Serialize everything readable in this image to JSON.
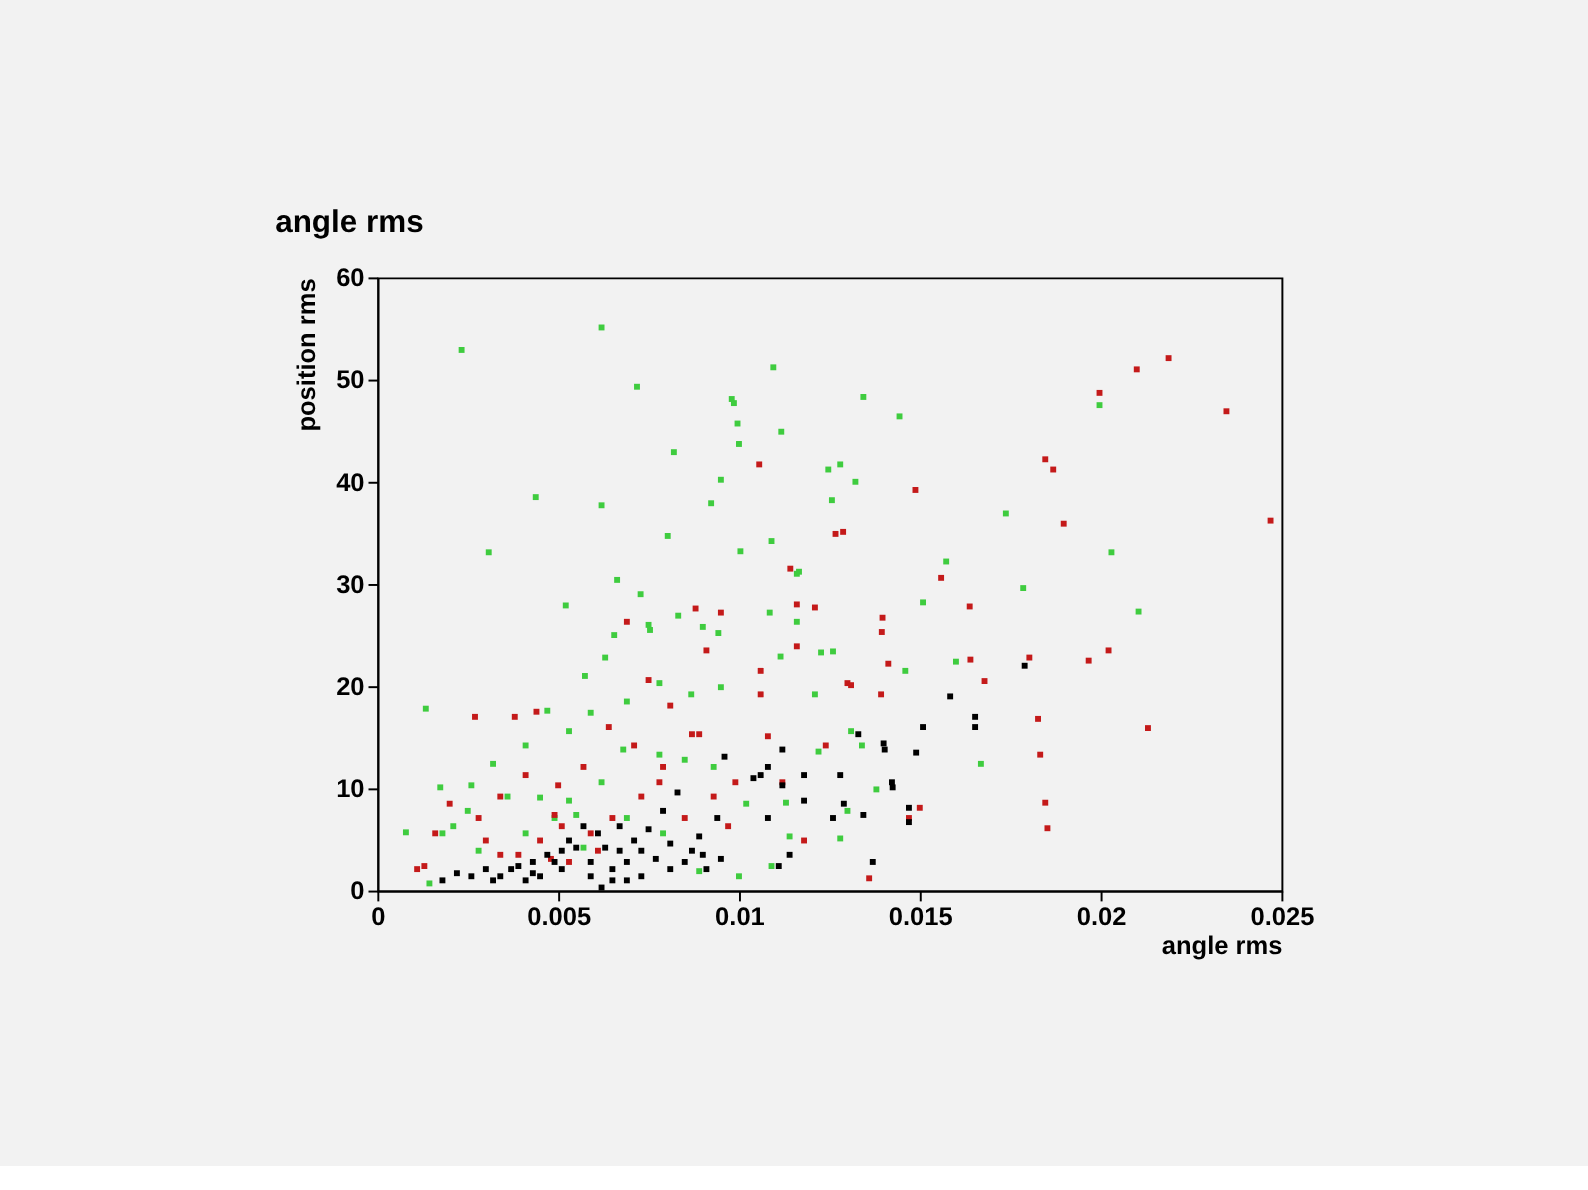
{
  "chart_data": {
    "type": "scatter",
    "title": "angle rms",
    "xlabel": "angle rms",
    "ylabel": "position rms",
    "xlim": [
      0,
      0.025
    ],
    "xticks": [
      0,
      0.005,
      0.01,
      0.015,
      0.02,
      0.025
    ],
    "ylim": [
      0,
      60
    ],
    "yticks": [
      0,
      10,
      20,
      30,
      40,
      50,
      60
    ],
    "grid": false,
    "legend": false,
    "marker": "square",
    "series": [
      {
        "color": "#3fcc3f",
        "x": [
          0.00233,
          0.0062,
          0.00718,
          0.0098,
          0.00986,
          0.00996,
          0.01,
          0.01095,
          0.01117,
          0.0082,
          0.00438,
          0.0062,
          0.00308,
          0.0095,
          0.00923,
          0.01344,
          0.01444,
          0.01247,
          0.0128,
          0.01257,
          0.01322,
          0.0109,
          0.00803,
          0.01004,
          0.01166,
          0.0116,
          0.01738,
          0.0203,
          0.01997,
          0.01573,
          0.01786,
          0.02105,
          0.01669,
          0.016,
          0.01509,
          0.00663,
          0.00728,
          0.00521,
          0.00134,
          0.00079,
          0.00174,
          0.00144,
          0.00655,
          0.0075,
          0.00832,
          0.00754,
          0.0063,
          0.00574,
          0.009,
          0.00943,
          0.01085,
          0.01115,
          0.0116,
          0.01227,
          0.0126,
          0.0146,
          0.0121,
          0.0131,
          0.0095,
          0.00868,
          0.0078,
          0.0069,
          0.0047,
          0.0041,
          0.0059,
          0.0053,
          0.0032,
          0.0026,
          0.0025,
          0.0018,
          0.0036,
          0.0045,
          0.0053,
          0.0062,
          0.0068,
          0.0078,
          0.0085,
          0.0093,
          0.0102,
          0.0113,
          0.0114,
          0.0128,
          0.0122,
          0.0134,
          0.0138,
          0.013,
          0.0109,
          0.0089,
          0.01,
          0.0028,
          0.0021,
          0.0041,
          0.0057,
          0.0069,
          0.0079,
          0.0049,
          0.0055
        ],
        "values": [
          52.9,
          55.1,
          49.3,
          48.1,
          47.7,
          45.7,
          43.7,
          51.2,
          44.9,
          42.9,
          38.5,
          37.7,
          33.1,
          40.2,
          37.9,
          48.3,
          46.4,
          41.2,
          41.7,
          38.2,
          40.0,
          34.2,
          34.7,
          33.2,
          31.2,
          31.0,
          36.9,
          33.1,
          47.5,
          32.2,
          29.6,
          27.3,
          12.4,
          22.4,
          28.2,
          30.4,
          29.0,
          27.9,
          17.8,
          5.7,
          10.1,
          0.7,
          25.0,
          26.0,
          26.9,
          25.5,
          22.8,
          21.0,
          25.8,
          25.2,
          27.2,
          22.9,
          26.3,
          23.3,
          23.4,
          21.5,
          19.2,
          15.6,
          19.9,
          19.2,
          20.3,
          18.5,
          17.6,
          14.2,
          17.4,
          15.6,
          12.4,
          10.3,
          7.8,
          5.6,
          9.2,
          9.1,
          8.8,
          10.6,
          13.8,
          13.3,
          12.8,
          12.1,
          8.5,
          8.6,
          5.3,
          5.1,
          13.6,
          14.2,
          9.9,
          7.8,
          2.4,
          1.9,
          1.4,
          3.9,
          6.3,
          5.6,
          4.2,
          7.1,
          5.6,
          7.1,
          7.4
        ]
      },
      {
        "color": "#c41a1a",
        "x": [
          0.02188,
          0.021,
          0.01997,
          0.02348,
          0.01847,
          0.01869,
          0.01898,
          0.0247,
          0.01488,
          0.01056,
          0.01267,
          0.01288,
          0.01142,
          0.01559,
          0.01638,
          0.01967,
          0.02022,
          0.01803,
          0.0164,
          0.01679,
          0.01827,
          0.02131,
          0.01833,
          0.01847,
          0.01853,
          0.01397,
          0.01395,
          0.01413,
          0.01393,
          0.013,
          0.0131,
          0.0116,
          0.0121,
          0.0088,
          0.0095,
          0.0106,
          0.0106,
          0.0108,
          0.0116,
          0.0027,
          0.0038,
          0.0044,
          0.0069,
          0.0075,
          0.0081,
          0.0091,
          0.0089,
          0.0064,
          0.0071,
          0.0079,
          0.0057,
          0.005,
          0.0041,
          0.0034,
          0.0028,
          0.002,
          0.0016,
          0.0011,
          0.0013,
          0.003,
          0.0039,
          0.0045,
          0.0051,
          0.0059,
          0.0065,
          0.0073,
          0.0085,
          0.0093,
          0.0099,
          0.0112,
          0.0118,
          0.0124,
          0.0147,
          0.015,
          0.0136,
          0.0053,
          0.0061,
          0.0034,
          0.0048,
          0.0097,
          0.0078,
          0.0087,
          0.0049
        ],
        "values": [
          52.1,
          51.0,
          48.7,
          46.9,
          42.2,
          41.2,
          35.9,
          36.2,
          39.2,
          41.7,
          34.9,
          35.1,
          31.5,
          30.6,
          27.8,
          22.5,
          23.5,
          22.8,
          22.6,
          20.5,
          16.8,
          15.9,
          13.3,
          8.6,
          6.1,
          26.7,
          25.3,
          22.2,
          19.2,
          20.3,
          20.1,
          28.0,
          27.7,
          27.6,
          27.2,
          21.5,
          19.2,
          15.1,
          23.9,
          17.0,
          17.0,
          17.5,
          26.3,
          20.6,
          18.1,
          23.5,
          15.3,
          16.0,
          14.2,
          12.1,
          12.1,
          10.3,
          11.3,
          9.2,
          7.1,
          8.5,
          5.6,
          2.1,
          2.4,
          4.9,
          3.5,
          4.9,
          6.3,
          5.6,
          7.1,
          9.2,
          7.1,
          9.2,
          10.6,
          10.6,
          4.9,
          14.2,
          7.1,
          8.1,
          1.2,
          2.8,
          3.9,
          3.5,
          3.1,
          6.3,
          10.6,
          15.3,
          7.4
        ]
      },
      {
        "color": "#000000",
        "x": [
          0.0179,
          0.01653,
          0.01653,
          0.01584,
          0.01509,
          0.0149,
          0.014,
          0.01403,
          0.0133,
          0.01423,
          0.01425,
          0.0147,
          0.0147,
          0.01344,
          0.0129,
          0.0137,
          0.0126,
          0.0128,
          0.0118,
          0.0118,
          0.0112,
          0.0108,
          0.0104,
          0.0106,
          0.0112,
          0.0108,
          0.0114,
          0.0111,
          0.0096,
          0.0094,
          0.0089,
          0.009,
          0.0087,
          0.0083,
          0.0079,
          0.0075,
          0.0071,
          0.0067,
          0.0063,
          0.0059,
          0.0055,
          0.0051,
          0.0047,
          0.0043,
          0.0039,
          0.0034,
          0.003,
          0.0026,
          0.0022,
          0.0018,
          0.0062,
          0.0065,
          0.0069,
          0.0073,
          0.0077,
          0.0081,
          0.0085,
          0.0061,
          0.0057,
          0.0053,
          0.0049,
          0.0045,
          0.0041,
          0.0037,
          0.0032,
          0.0065,
          0.0073,
          0.0059,
          0.0069,
          0.0081,
          0.0091,
          0.0095,
          0.0067,
          0.0051,
          0.0043
        ],
        "values": [
          22.0,
          17.0,
          16.0,
          19.0,
          16.0,
          13.5,
          14.4,
          13.8,
          15.3,
          10.6,
          10.1,
          8.1,
          6.7,
          7.4,
          8.5,
          2.8,
          7.1,
          11.3,
          11.3,
          8.8,
          13.8,
          12.1,
          11.0,
          11.3,
          10.3,
          7.1,
          3.5,
          2.4,
          13.1,
          7.1,
          5.3,
          3.5,
          3.9,
          9.6,
          7.8,
          6.0,
          4.9,
          6.3,
          4.2,
          2.8,
          4.2,
          2.1,
          3.5,
          1.7,
          2.4,
          1.4,
          2.1,
          1.4,
          1.7,
          1.0,
          0.3,
          2.1,
          2.8,
          3.9,
          3.1,
          4.6,
          2.8,
          5.6,
          6.3,
          4.9,
          2.8,
          1.4,
          1.0,
          2.1,
          1.0,
          1.0,
          1.4,
          1.4,
          1.0,
          2.1,
          2.1,
          3.1,
          3.9,
          3.9,
          2.8
        ]
      }
    ]
  }
}
